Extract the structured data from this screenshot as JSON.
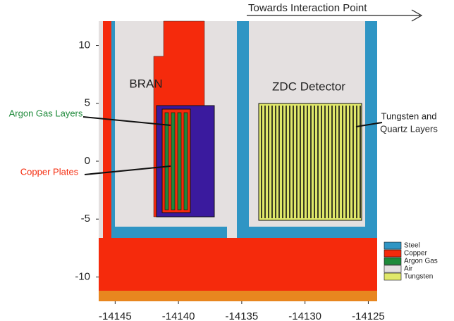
{
  "header": {
    "direction": "Towards Interaction Point"
  },
  "labels": {
    "bran": "BRAN",
    "zdc": "ZDC Detector",
    "argon": "Argon Gas Layers",
    "copper": "Copper Plates",
    "tungsten_line1": "Tungsten and",
    "tungsten_line2": "Quartz Layers"
  },
  "axes": {
    "x": {
      "lim": [
        -14146.3,
        -14124.3
      ],
      "ticks": [
        -14145,
        -14140,
        -14135,
        -14130,
        -14125
      ]
    },
    "y": {
      "lim": [
        -12.1,
        12.1
      ],
      "ticks": [
        10,
        5,
        0,
        -5,
        -10
      ]
    }
  },
  "legend": [
    {
      "name": "Steel",
      "color": "#2f95c4"
    },
    {
      "name": "Copper",
      "color": "#f52a0c"
    },
    {
      "name": "Argon Gas",
      "color": "#1e8a3a"
    },
    {
      "name": "Air",
      "color": "#e4e0e0"
    },
    {
      "name": "Tungsten",
      "color": "#e0e86a"
    }
  ]
}
